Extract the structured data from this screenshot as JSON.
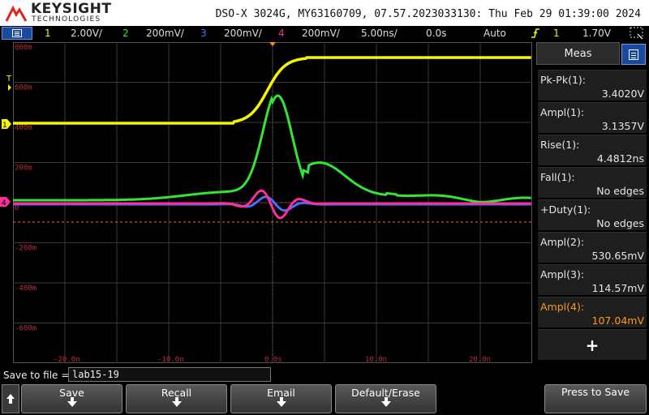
{
  "header": {
    "brand": "KEYSIGHT",
    "brand_sub": "TECHNOLOGIES",
    "info": "DSO-X 3024G, MY63160709, 07.57.2023033130: Thu Feb 29 01:39:00 2024"
  },
  "status_bar": {
    "ch1": {
      "num": "1",
      "scale": "2.00V/",
      "color": "#f5f500"
    },
    "ch2": {
      "num": "2",
      "scale": "200mV/",
      "color": "#33e633"
    },
    "ch3": {
      "num": "3",
      "scale": "200mV/",
      "color": "#4a6cff"
    },
    "ch4": {
      "num": "4",
      "scale": "200mV/",
      "color": "#ff2d9a"
    },
    "timebase": "5.00ns/",
    "delay": "0.0s",
    "trigger_mode": "Auto",
    "trigger_icon": "rising-edge-trigger-icon",
    "trigger_source": "1",
    "trigger_level": "1.70V"
  },
  "graticule": {
    "y_labels": [
      "800m",
      "600m",
      "400m",
      "200m",
      "0",
      "-200m",
      "-400m",
      "-600m"
    ],
    "x_labels": [
      "-20.0n",
      "-10.0n",
      "0.0s",
      "10.0n",
      "20.0n"
    ],
    "markers": {
      "trigger": "T",
      "ch1": "1",
      "ch4": "4"
    }
  },
  "measurements": {
    "title": "Meas",
    "items": [
      {
        "name": "Pk-Pk(1):",
        "value": "3.4020V",
        "color": "#e6e6e6"
      },
      {
        "name": "Ampl(1):",
        "value": "3.1357V",
        "color": "#e6e6e6"
      },
      {
        "name": "Rise(1):",
        "value": "4.4812ns",
        "color": "#e6e6e6"
      },
      {
        "name": "Fall(1):",
        "value": "No edges",
        "color": "#e6e6e6"
      },
      {
        "name": "+Duty(1):",
        "value": "No edges",
        "color": "#e6e6e6"
      },
      {
        "name": "Ampl(2):",
        "value": "530.65mV",
        "color": "#e6e6e6"
      },
      {
        "name": "Ampl(3):",
        "value": "114.57mV",
        "color": "#e6e6e6"
      },
      {
        "name": "Ampl(4):",
        "value": "107.04mV",
        "color": "#ff9a1a"
      }
    ],
    "add_label": "+"
  },
  "bottom": {
    "save_to_file_label": "Save to file =",
    "filename": "lab15-19",
    "softkeys": [
      "Save",
      "Recall",
      "Email",
      "Default/Erase"
    ],
    "press_to_save": "Press to Save"
  }
}
